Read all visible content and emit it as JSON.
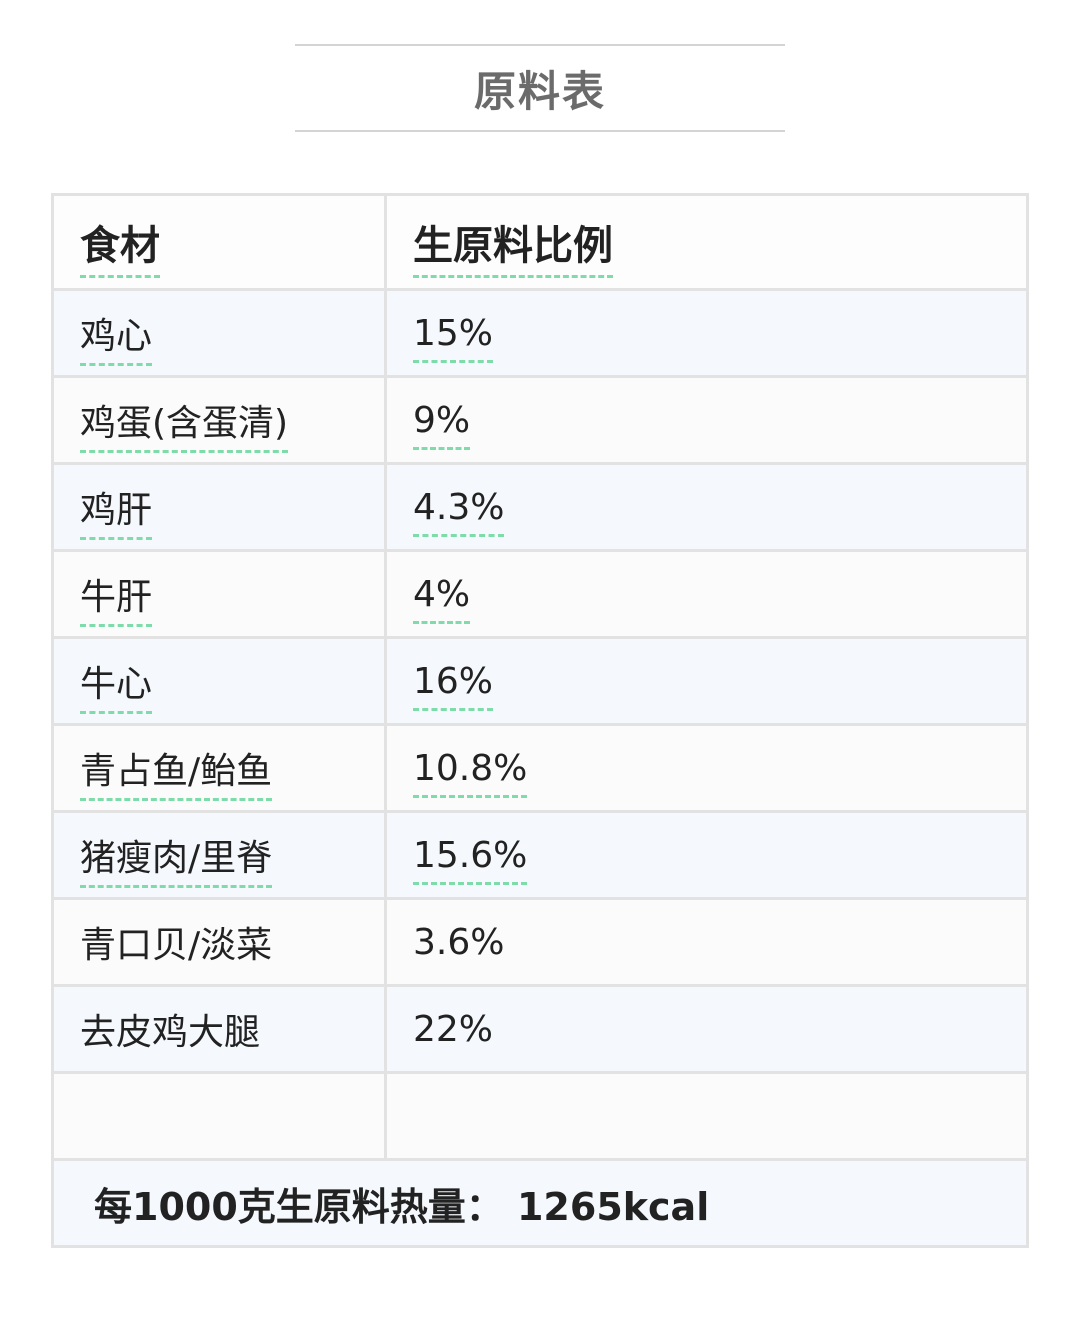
{
  "title": "原料表",
  "header": {
    "col1": "食材",
    "col2": "生原料比例"
  },
  "rows": [
    {
      "name": "鸡心",
      "ratio": "15%",
      "underline": true
    },
    {
      "name": "鸡蛋(含蛋清)",
      "ratio": "9%",
      "underline": true
    },
    {
      "name": "鸡肝",
      "ratio": "4.3%",
      "underline": true
    },
    {
      "name": "牛肝",
      "ratio": "4%",
      "underline": true
    },
    {
      "name": "牛心",
      "ratio": "16%",
      "underline": true
    },
    {
      "name": "青占鱼/鲐鱼",
      "ratio": "10.8%",
      "underline": true
    },
    {
      "name": "猪瘦肉/里脊",
      "ratio": "15.6%",
      "underline": true
    },
    {
      "name": "青口贝/淡菜",
      "ratio": "3.6%",
      "underline": false
    },
    {
      "name": "去皮鸡大腿",
      "ratio": "22%",
      "underline": false
    }
  ],
  "footer": "每1000克生原料热量：  1265kcal",
  "colors": {
    "underline": "#7edcaa",
    "border": "#e2e2e2",
    "row_alt": "#f5f9fd"
  }
}
